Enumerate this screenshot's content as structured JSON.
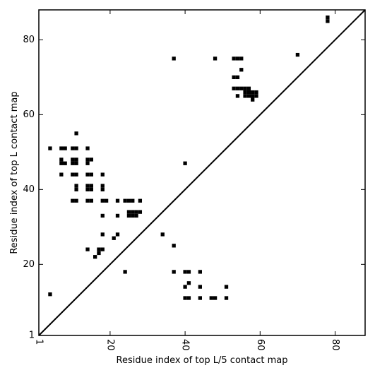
{
  "chart_data": {
    "type": "heatmap",
    "xlabel": "Residue index of top L/5 contact map",
    "ylabel": "Residue index of top L contact map",
    "xlim": [
      1,
      88
    ],
    "ylim": [
      1,
      88
    ],
    "xticks": [
      1,
      20,
      40,
      60,
      80
    ],
    "yticks": [
      1,
      20,
      40,
      60,
      80
    ],
    "x_tick_rotation": -90,
    "grid": false,
    "diagonal": [
      [
        1,
        1
      ],
      [
        88,
        88
      ]
    ],
    "cell_color": "#000000",
    "contacts": [
      [
        4,
        12
      ],
      [
        24,
        18
      ],
      [
        37,
        18
      ],
      [
        40,
        18
      ],
      [
        41,
        18
      ],
      [
        44,
        18
      ],
      [
        40,
        14
      ],
      [
        44,
        14
      ],
      [
        51,
        14
      ],
      [
        41,
        15
      ],
      [
        40,
        11
      ],
      [
        41,
        11
      ],
      [
        44,
        11
      ],
      [
        47,
        11
      ],
      [
        48,
        11
      ],
      [
        51,
        11
      ],
      [
        14,
        24
      ],
      [
        17,
        23
      ],
      [
        17,
        24
      ],
      [
        18,
        24
      ],
      [
        16,
        22
      ],
      [
        18,
        28
      ],
      [
        21,
        27
      ],
      [
        22,
        28
      ],
      [
        34,
        28
      ],
      [
        37,
        25
      ],
      [
        18,
        33
      ],
      [
        22,
        33
      ],
      [
        25,
        33
      ],
      [
        26,
        33
      ],
      [
        27,
        33
      ],
      [
        25,
        34
      ],
      [
        26,
        34
      ],
      [
        27,
        34
      ],
      [
        28,
        34
      ],
      [
        10,
        37
      ],
      [
        11,
        37
      ],
      [
        14,
        37
      ],
      [
        15,
        37
      ],
      [
        18,
        37
      ],
      [
        19,
        37
      ],
      [
        22,
        37
      ],
      [
        24,
        37
      ],
      [
        25,
        37
      ],
      [
        26,
        37
      ],
      [
        28,
        37
      ],
      [
        11,
        40
      ],
      [
        14,
        40
      ],
      [
        15,
        40
      ],
      [
        18,
        40
      ],
      [
        11,
        41
      ],
      [
        14,
        41
      ],
      [
        15,
        41
      ],
      [
        18,
        41
      ],
      [
        7,
        44
      ],
      [
        10,
        44
      ],
      [
        11,
        44
      ],
      [
        14,
        44
      ],
      [
        15,
        44
      ],
      [
        18,
        44
      ],
      [
        7,
        47
      ],
      [
        8,
        47
      ],
      [
        10,
        47
      ],
      [
        11,
        47
      ],
      [
        14,
        47
      ],
      [
        7,
        48
      ],
      [
        10,
        48
      ],
      [
        11,
        48
      ],
      [
        14,
        48
      ],
      [
        15,
        48
      ],
      [
        40,
        47
      ],
      [
        4,
        51
      ],
      [
        7,
        51
      ],
      [
        8,
        51
      ],
      [
        10,
        51
      ],
      [
        11,
        51
      ],
      [
        14,
        51
      ],
      [
        11,
        55
      ],
      [
        37,
        75
      ],
      [
        48,
        75
      ],
      [
        53,
        75
      ],
      [
        54,
        75
      ],
      [
        55,
        75
      ],
      [
        55,
        72
      ],
      [
        53,
        70
      ],
      [
        54,
        70
      ],
      [
        53,
        67
      ],
      [
        54,
        67
      ],
      [
        55,
        67
      ],
      [
        56,
        67
      ],
      [
        57,
        67
      ],
      [
        56,
        66
      ],
      [
        57,
        66
      ],
      [
        58,
        66
      ],
      [
        59,
        66
      ],
      [
        54,
        65
      ],
      [
        56,
        65
      ],
      [
        57,
        65
      ],
      [
        58,
        65
      ],
      [
        59,
        65
      ],
      [
        58,
        64
      ],
      [
        70,
        76
      ],
      [
        78,
        86
      ],
      [
        78,
        85
      ]
    ]
  }
}
